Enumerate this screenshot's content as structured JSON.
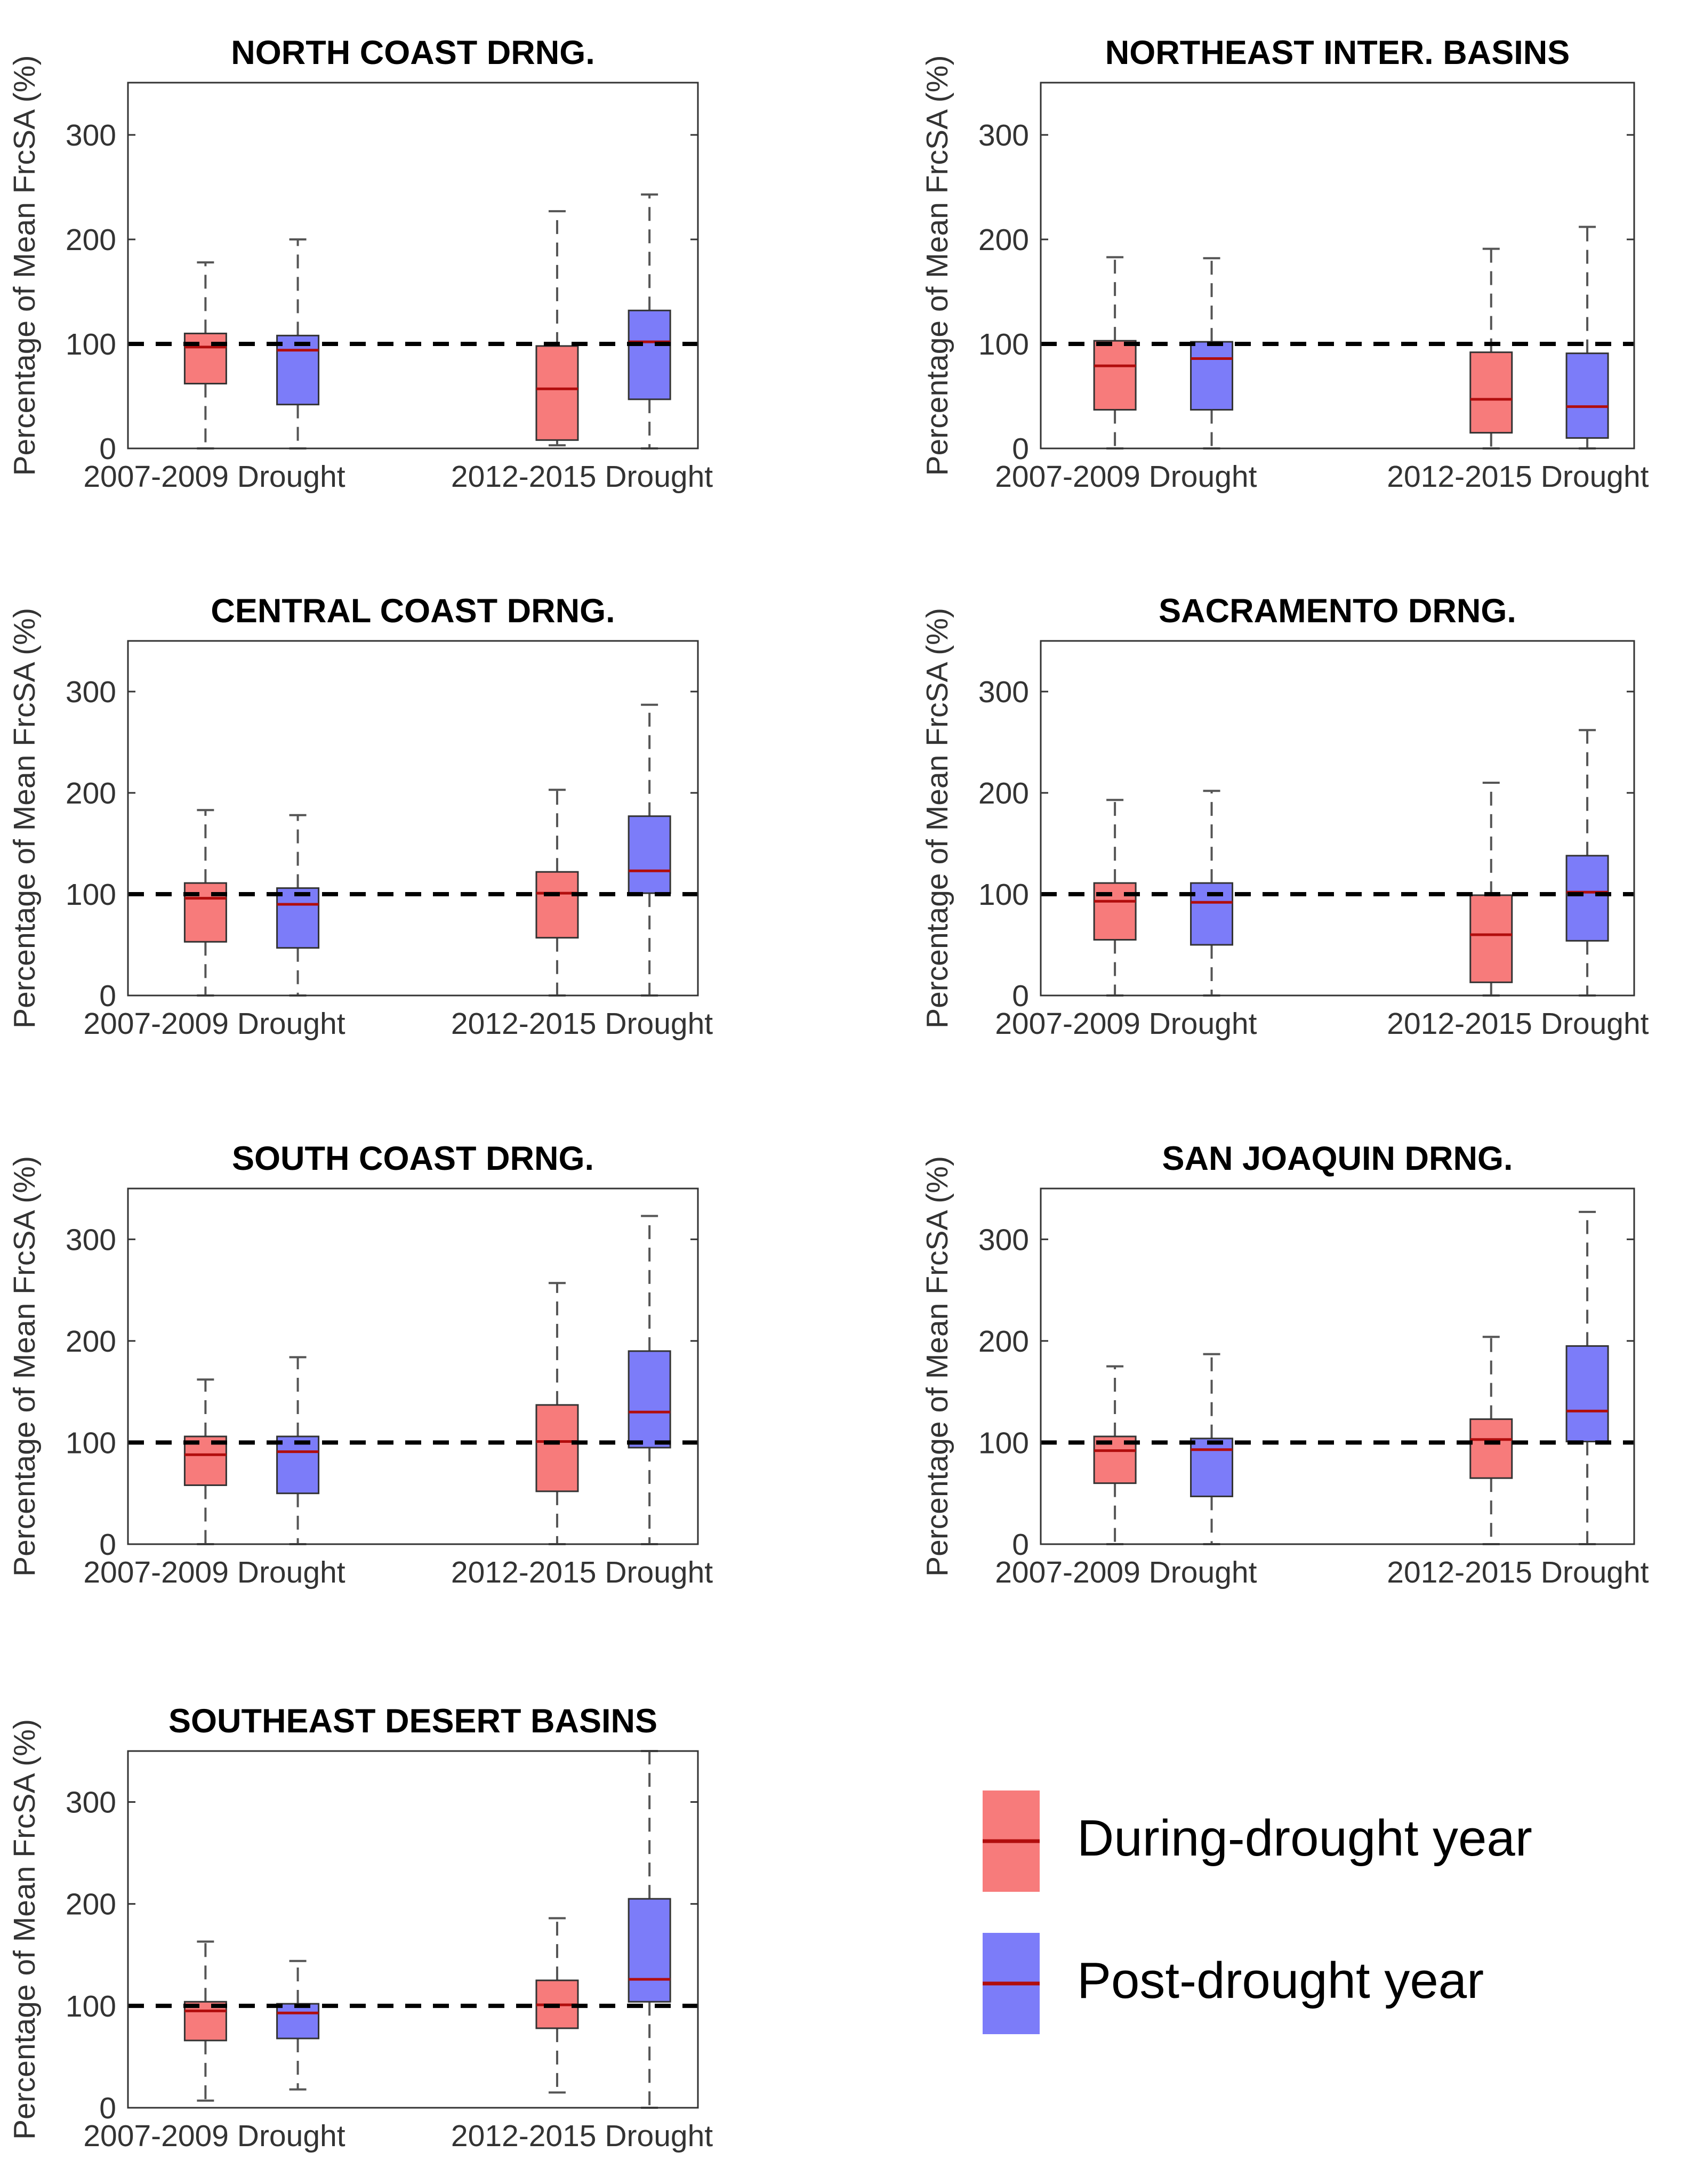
{
  "chart_data": [
    {
      "type": "boxplot",
      "title": "NORTH COAST DRNG.",
      "ylabel": "Percentage of Mean FrcSA (%)",
      "categories": [
        "2007-2009 Drought",
        "2012-2015 Drought"
      ],
      "yticks": [
        0,
        100,
        200,
        300
      ],
      "ylim": [
        0,
        350
      ],
      "reference_line": 100,
      "series": [
        {
          "name": "During-drought year",
          "boxes": [
            {
              "category": "2007-2009 Drought",
              "min": 0,
              "q1": 62,
              "median": 97,
              "q3": 110,
              "max": 178
            },
            {
              "category": "2012-2015 Drought",
              "min": 3,
              "q1": 8,
              "median": 57,
              "q3": 98,
              "max": 227
            }
          ]
        },
        {
          "name": "Post-drought year",
          "boxes": [
            {
              "category": "2007-2009 Drought",
              "min": 0,
              "q1": 42,
              "median": 94,
              "q3": 108,
              "max": 200
            },
            {
              "category": "2012-2015 Drought",
              "min": 0,
              "q1": 47,
              "median": 102,
              "q3": 132,
              "max": 243
            }
          ]
        }
      ]
    },
    {
      "type": "boxplot",
      "title": "NORTHEAST INTER. BASINS",
      "ylabel": "Percentage of Mean FrcSA (%)",
      "categories": [
        "2007-2009 Drought",
        "2012-2015 Drought"
      ],
      "yticks": [
        0,
        100,
        200,
        300
      ],
      "ylim": [
        0,
        350
      ],
      "reference_line": 100,
      "series": [
        {
          "name": "During-drought year",
          "boxes": [
            {
              "category": "2007-2009 Drought",
              "min": 0,
              "q1": 37,
              "median": 79,
              "q3": 103,
              "max": 183
            },
            {
              "category": "2012-2015 Drought",
              "min": 0,
              "q1": 15,
              "median": 47,
              "q3": 92,
              "max": 191
            }
          ]
        },
        {
          "name": "Post-drought year",
          "boxes": [
            {
              "category": "2007-2009 Drought",
              "min": 0,
              "q1": 37,
              "median": 86,
              "q3": 102,
              "max": 182
            },
            {
              "category": "2012-2015 Drought",
              "min": 0,
              "q1": 10,
              "median": 40,
              "q3": 91,
              "max": 212
            }
          ]
        }
      ]
    },
    {
      "type": "boxplot",
      "title": "CENTRAL COAST DRNG.",
      "ylabel": "Percentage of Mean FrcSA (%)",
      "categories": [
        "2007-2009 Drought",
        "2012-2015 Drought"
      ],
      "yticks": [
        0,
        100,
        200,
        300
      ],
      "ylim": [
        0,
        350
      ],
      "reference_line": 100,
      "series": [
        {
          "name": "During-drought year",
          "boxes": [
            {
              "category": "2007-2009 Drought",
              "min": 0,
              "q1": 53,
              "median": 96,
              "q3": 111,
              "max": 183
            },
            {
              "category": "2012-2015 Drought",
              "min": 0,
              "q1": 57,
              "median": 101,
              "q3": 122,
              "max": 203
            }
          ]
        },
        {
          "name": "Post-drought year",
          "boxes": [
            {
              "category": "2007-2009 Drought",
              "min": 0,
              "q1": 47,
              "median": 90,
              "q3": 106,
              "max": 178
            },
            {
              "category": "2012-2015 Drought",
              "min": 0,
              "q1": 101,
              "median": 123,
              "q3": 177,
              "max": 287
            }
          ]
        }
      ]
    },
    {
      "type": "boxplot",
      "title": "SACRAMENTO DRNG.",
      "ylabel": "Percentage of Mean FrcSA (%)",
      "categories": [
        "2007-2009 Drought",
        "2012-2015 Drought"
      ],
      "yticks": [
        0,
        100,
        200,
        300
      ],
      "ylim": [
        0,
        350
      ],
      "reference_line": 100,
      "series": [
        {
          "name": "During-drought year",
          "boxes": [
            {
              "category": "2007-2009 Drought",
              "min": 0,
              "q1": 55,
              "median": 93,
              "q3": 111,
              "max": 193
            },
            {
              "category": "2012-2015 Drought",
              "min": 0,
              "q1": 13,
              "median": 60,
              "q3": 99,
              "max": 210
            }
          ]
        },
        {
          "name": "Post-drought year",
          "boxes": [
            {
              "category": "2007-2009 Drought",
              "min": 0,
              "q1": 50,
              "median": 92,
              "q3": 111,
              "max": 202
            },
            {
              "category": "2012-2015 Drought",
              "min": 0,
              "q1": 54,
              "median": 102,
              "q3": 138,
              "max": 262
            }
          ]
        }
      ]
    },
    {
      "type": "boxplot",
      "title": "SOUTH COAST DRNG.",
      "ylabel": "Percentage of Mean FrcSA (%)",
      "categories": [
        "2007-2009 Drought",
        "2012-2015 Drought"
      ],
      "yticks": [
        0,
        100,
        200,
        300
      ],
      "ylim": [
        0,
        350
      ],
      "reference_line": 100,
      "series": [
        {
          "name": "During-drought year",
          "boxes": [
            {
              "category": "2007-2009 Drought",
              "min": 0,
              "q1": 58,
              "median": 88,
              "q3": 106,
              "max": 162
            },
            {
              "category": "2012-2015 Drought",
              "min": 0,
              "q1": 52,
              "median": 101,
              "q3": 137,
              "max": 257
            }
          ]
        },
        {
          "name": "Post-drought year",
          "boxes": [
            {
              "category": "2007-2009 Drought",
              "min": 0,
              "q1": 50,
              "median": 91,
              "q3": 106,
              "max": 184
            },
            {
              "category": "2012-2015 Drought",
              "min": 0,
              "q1": 95,
              "median": 130,
              "q3": 190,
              "max": 323
            }
          ]
        }
      ]
    },
    {
      "type": "boxplot",
      "title": "SAN JOAQUIN DRNG.",
      "ylabel": "Percentage of Mean FrcSA (%)",
      "categories": [
        "2007-2009 Drought",
        "2012-2015 Drought"
      ],
      "yticks": [
        0,
        100,
        200,
        300
      ],
      "ylim": [
        0,
        350
      ],
      "reference_line": 100,
      "series": [
        {
          "name": "During-drought year",
          "boxes": [
            {
              "category": "2007-2009 Drought",
              "min": 0,
              "q1": 60,
              "median": 92,
              "q3": 106,
              "max": 175
            },
            {
              "category": "2012-2015 Drought",
              "min": 0,
              "q1": 65,
              "median": 103,
              "q3": 123,
              "max": 204
            }
          ]
        },
        {
          "name": "Post-drought year",
          "boxes": [
            {
              "category": "2007-2009 Drought",
              "min": 0,
              "q1": 47,
              "median": 93,
              "q3": 104,
              "max": 187
            },
            {
              "category": "2012-2015 Drought",
              "min": 0,
              "q1": 101,
              "median": 131,
              "q3": 195,
              "max": 327
            }
          ]
        }
      ]
    },
    {
      "type": "boxplot",
      "title": "SOUTHEAST DESERT BASINS",
      "ylabel": "Percentage of Mean FrcSA (%)",
      "categories": [
        "2007-2009 Drought",
        "2012-2015 Drought"
      ],
      "yticks": [
        0,
        100,
        200,
        300
      ],
      "ylim": [
        0,
        350
      ],
      "reference_line": 100,
      "series": [
        {
          "name": "During-drought year",
          "boxes": [
            {
              "category": "2007-2009 Drought",
              "min": 7,
              "q1": 66,
              "median": 95,
              "q3": 104,
              "max": 163
            },
            {
              "category": "2012-2015 Drought",
              "min": 15,
              "q1": 78,
              "median": 101,
              "q3": 125,
              "max": 186
            }
          ]
        },
        {
          "name": "Post-drought year",
          "boxes": [
            {
              "category": "2007-2009 Drought",
              "min": 18,
              "q1": 68,
              "median": 93,
              "q3": 102,
              "max": 144
            },
            {
              "category": "2012-2015 Drought",
              "min": 0,
              "q1": 104,
              "median": 126,
              "q3": 205,
              "max": 350
            }
          ]
        }
      ]
    }
  ],
  "legend": {
    "items": [
      {
        "label": "During-drought year",
        "fill": "#f77b7b",
        "line": "#b10d0d"
      },
      {
        "label": "Post-drought year",
        "fill": "#7c7cf9",
        "line": "#b10d0d"
      }
    ]
  },
  "colors": {
    "during_fill": "#f77b7b",
    "post_fill": "#7c7cf9",
    "median_line": "#b10d0d",
    "axis": "#333333",
    "reference_line": "#000000"
  }
}
